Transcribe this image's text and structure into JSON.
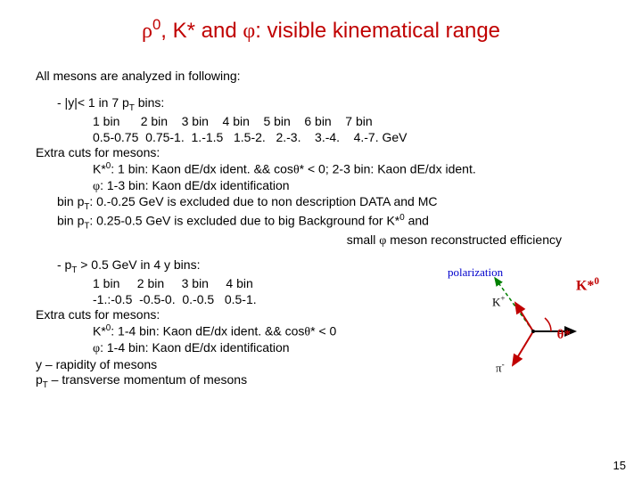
{
  "title_html": "<span class='sym'>ρ</span><span class='sup'>0</span>, K* and <span class='sym'>φ</span>: visible kinematical range",
  "intro": "All mesons are analyzed  in following:",
  "blockA": {
    "l1_html": "- |y|< 1 in 7 p<span class='sub'>T</span> bins:",
    "l2": "1 bin      2 bin    3 bin    4 bin    5 bin    6 bin    7 bin",
    "l3": "0.5-0.75  0.75-1.  1.-1.5   1.5-2.   2.-3.    3.-4.    4.-7. GeV",
    "l4": "Extra cuts for mesons:",
    "l5_html": "K*<span class='sup'>0</span>: 1 bin: Kaon dE/dx ident. && cos<span class='sym'>θ</span>* < 0; 2-3 bin: Kaon dE/dx ident.",
    "l6_html": "<span class='sym'>φ</span>: 1-3 bin: Kaon dE/dx identification",
    "l7_html": "bin p<span class='sub'>T</span>: 0.-0.25 GeV is excluded due to non description DATA and MC",
    "l8_html": "bin p<span class='sub'>T</span>: 0.25-0.5 GeV is excluded due to big Background for K*<span class='sup'>0</span> and",
    "l9_html": "small <span class='sym'>φ</span> meson reconstructed efficiency"
  },
  "blockB": {
    "l1_html": "- p<span class='sub'>T</span> > 0.5 GeV in 4 y bins:",
    "l2": "1 bin     2 bin     3 bin     4 bin",
    "l3": "-1.:-0.5  -0.5-0.  0.-0.5   0.5-1.",
    "l4": "Extra cuts for mesons:",
    "l5_html": "K*<span class='sup'>0</span>: 1-4 bin: Kaon dE/dx ident. && cos<span class='sym'>θ</span>* < 0",
    "l6_html": "<span class='sym'>φ</span>: 1-4 bin: Kaon dE/dx identification",
    "l7": "y – rapidity of mesons",
    "l8_html": "p<span class='sub'>T</span> – transverse momentum of mesons"
  },
  "diagram": {
    "polarization": "polarization",
    "kstar0_html": "K*<span class='sup'>0</span>",
    "kplus_html": "K<span class='sup'>+</span>",
    "theta_html": "<span class='sym'>θ</span>*",
    "pi_html": "<span class='sym'>π</span><span class='sup'>-</span>",
    "colors": {
      "polar_text": "#0000cc",
      "kstar_text": "#c00000",
      "theta_text": "#c00000",
      "dashed": "#008000",
      "axis": "#000000",
      "kplus": "#c00000",
      "pi": "#c00000"
    }
  },
  "page": "15"
}
